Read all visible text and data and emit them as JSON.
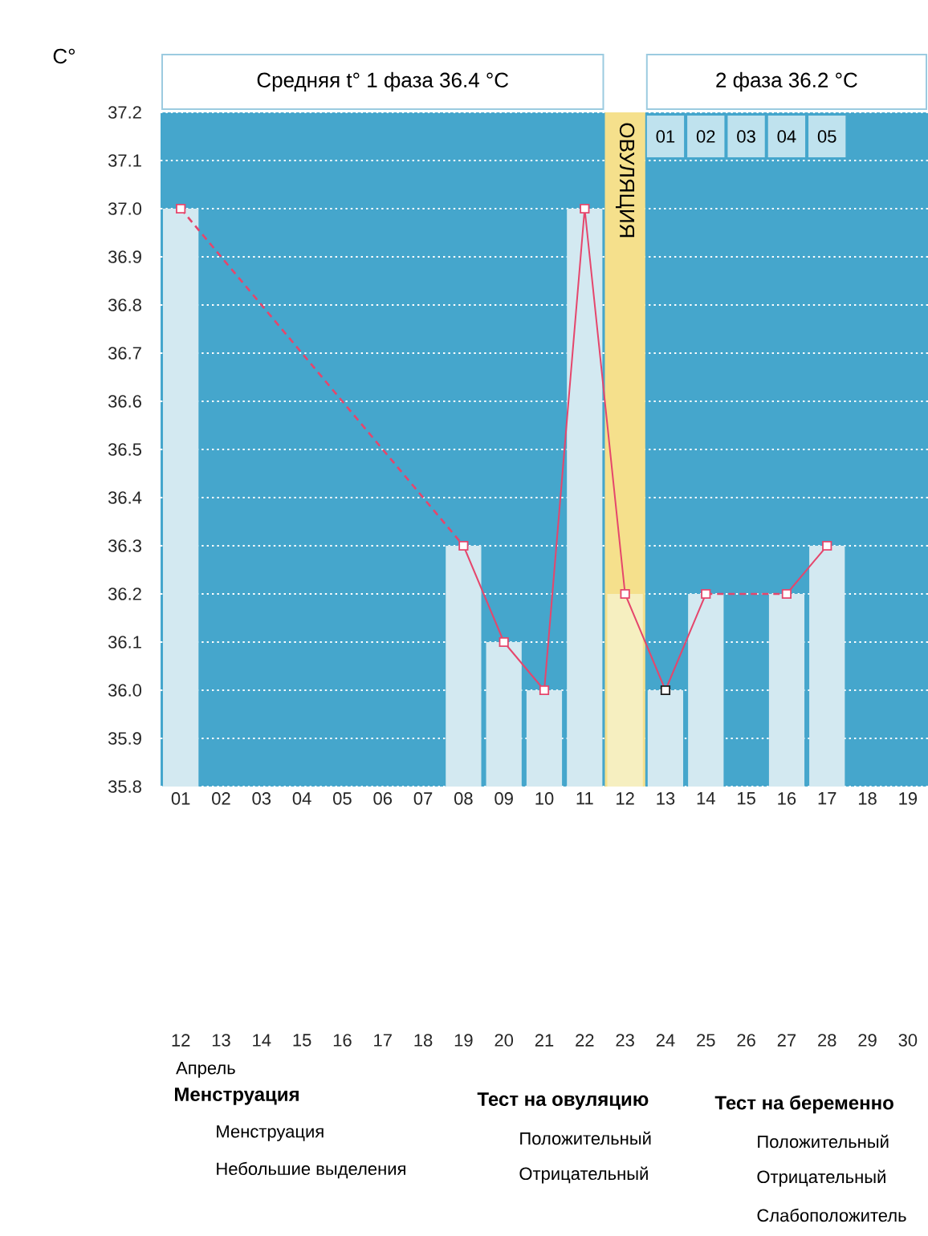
{
  "chart_data": [
    {
      "type": "bar",
      "ylabel": "C°",
      "xlabel": "Апрель",
      "categories": [
        "01",
        "02",
        "03",
        "04",
        "05",
        "06",
        "07",
        "08",
        "09",
        "10",
        "11",
        "12",
        "13",
        "14",
        "15",
        "16",
        "17",
        "18",
        "19"
      ],
      "series": [
        {
          "type": "bar",
          "colors": [
            "#d3e9f1",
            null,
            null,
            null,
            null,
            null,
            null,
            "#d3e9f1",
            "#d3e9f1",
            "#d3e9f1",
            "#d3e9f1",
            "#f6efc0",
            "#d3e9f1",
            "#d3e9f1",
            null,
            "#d3e9f1",
            "#d3e9f1",
            null,
            null
          ],
          "values": [
            37.0,
            null,
            null,
            null,
            null,
            null,
            null,
            36.3,
            36.1,
            36.0,
            37.0,
            36.2,
            36.0,
            36.2,
            null,
            36.2,
            36.3,
            null,
            null
          ]
        },
        {
          "type": "line",
          "color": "#e5466c",
          "colors": [
            "#e5466c",
            null,
            null,
            null,
            null,
            null,
            null,
            "#e5466c",
            "#e5466c",
            "#e5466c",
            "#e5466c",
            "#e5466c",
            "#1a1a1a",
            "#e5466c",
            null,
            "#e5466c",
            "#e5466c",
            null,
            null
          ],
          "values": [
            37.0,
            null,
            null,
            null,
            null,
            null,
            null,
            36.3,
            36.1,
            36.0,
            37.0,
            36.2,
            36.0,
            36.2,
            null,
            36.2,
            36.3,
            null,
            null
          ]
        }
      ],
      "ylim": [
        35.8,
        37.2
      ],
      "yticks": [
        35.8,
        35.9,
        {
          "value": 36,
          "label": "36.0"
        },
        36.1,
        36.2,
        36.3,
        36.4,
        36.5,
        36.6,
        36.7,
        36.8,
        36.9,
        {
          "value": 37,
          "label": "37.0"
        },
        37.1,
        37.2
      ],
      "grid": "y",
      "marker": "square",
      "line_style": "solid",
      "bands": [
        {
          "axis": "x",
          "from": "12",
          "to": "12",
          "label": "ОВУЛЯЦИЯ",
          "color": "#f5e08c"
        }
      ],
      "annotations": [
        "Средняя t° 1 фаза 36.4 °C",
        "2 фаза 36.2 °C",
        {
          "text": "01",
          "x": "13",
          "y": 37.15
        },
        {
          "text": "02",
          "x": "14",
          "y": 37.15
        },
        {
          "text": "03",
          "x": "15",
          "y": 37.15
        },
        {
          "text": "04",
          "x": "16",
          "y": 37.15
        },
        {
          "text": "05",
          "x": "17",
          "y": 37.15
        },
        "12",
        "13",
        "14",
        "15",
        "16",
        "17",
        "18",
        "19",
        "20",
        "21",
        "22",
        "23",
        "24",
        "25",
        "26",
        "27",
        "28",
        "29",
        "30"
      ]
    },
    {
      "type": "other",
      "title": "Менструация",
      "annotations": [
        "Менструация",
        "Небольшие выделения"
      ]
    },
    {
      "type": "other",
      "title": "Тест на овуляцию",
      "annotations": [
        "Положительный",
        "Отрицательный"
      ]
    },
    {
      "type": "other",
      "title": "Тест на беременно",
      "annotations": [
        "Положительный",
        "Отрицательный",
        "Слабоположитель"
      ]
    }
  ]
}
